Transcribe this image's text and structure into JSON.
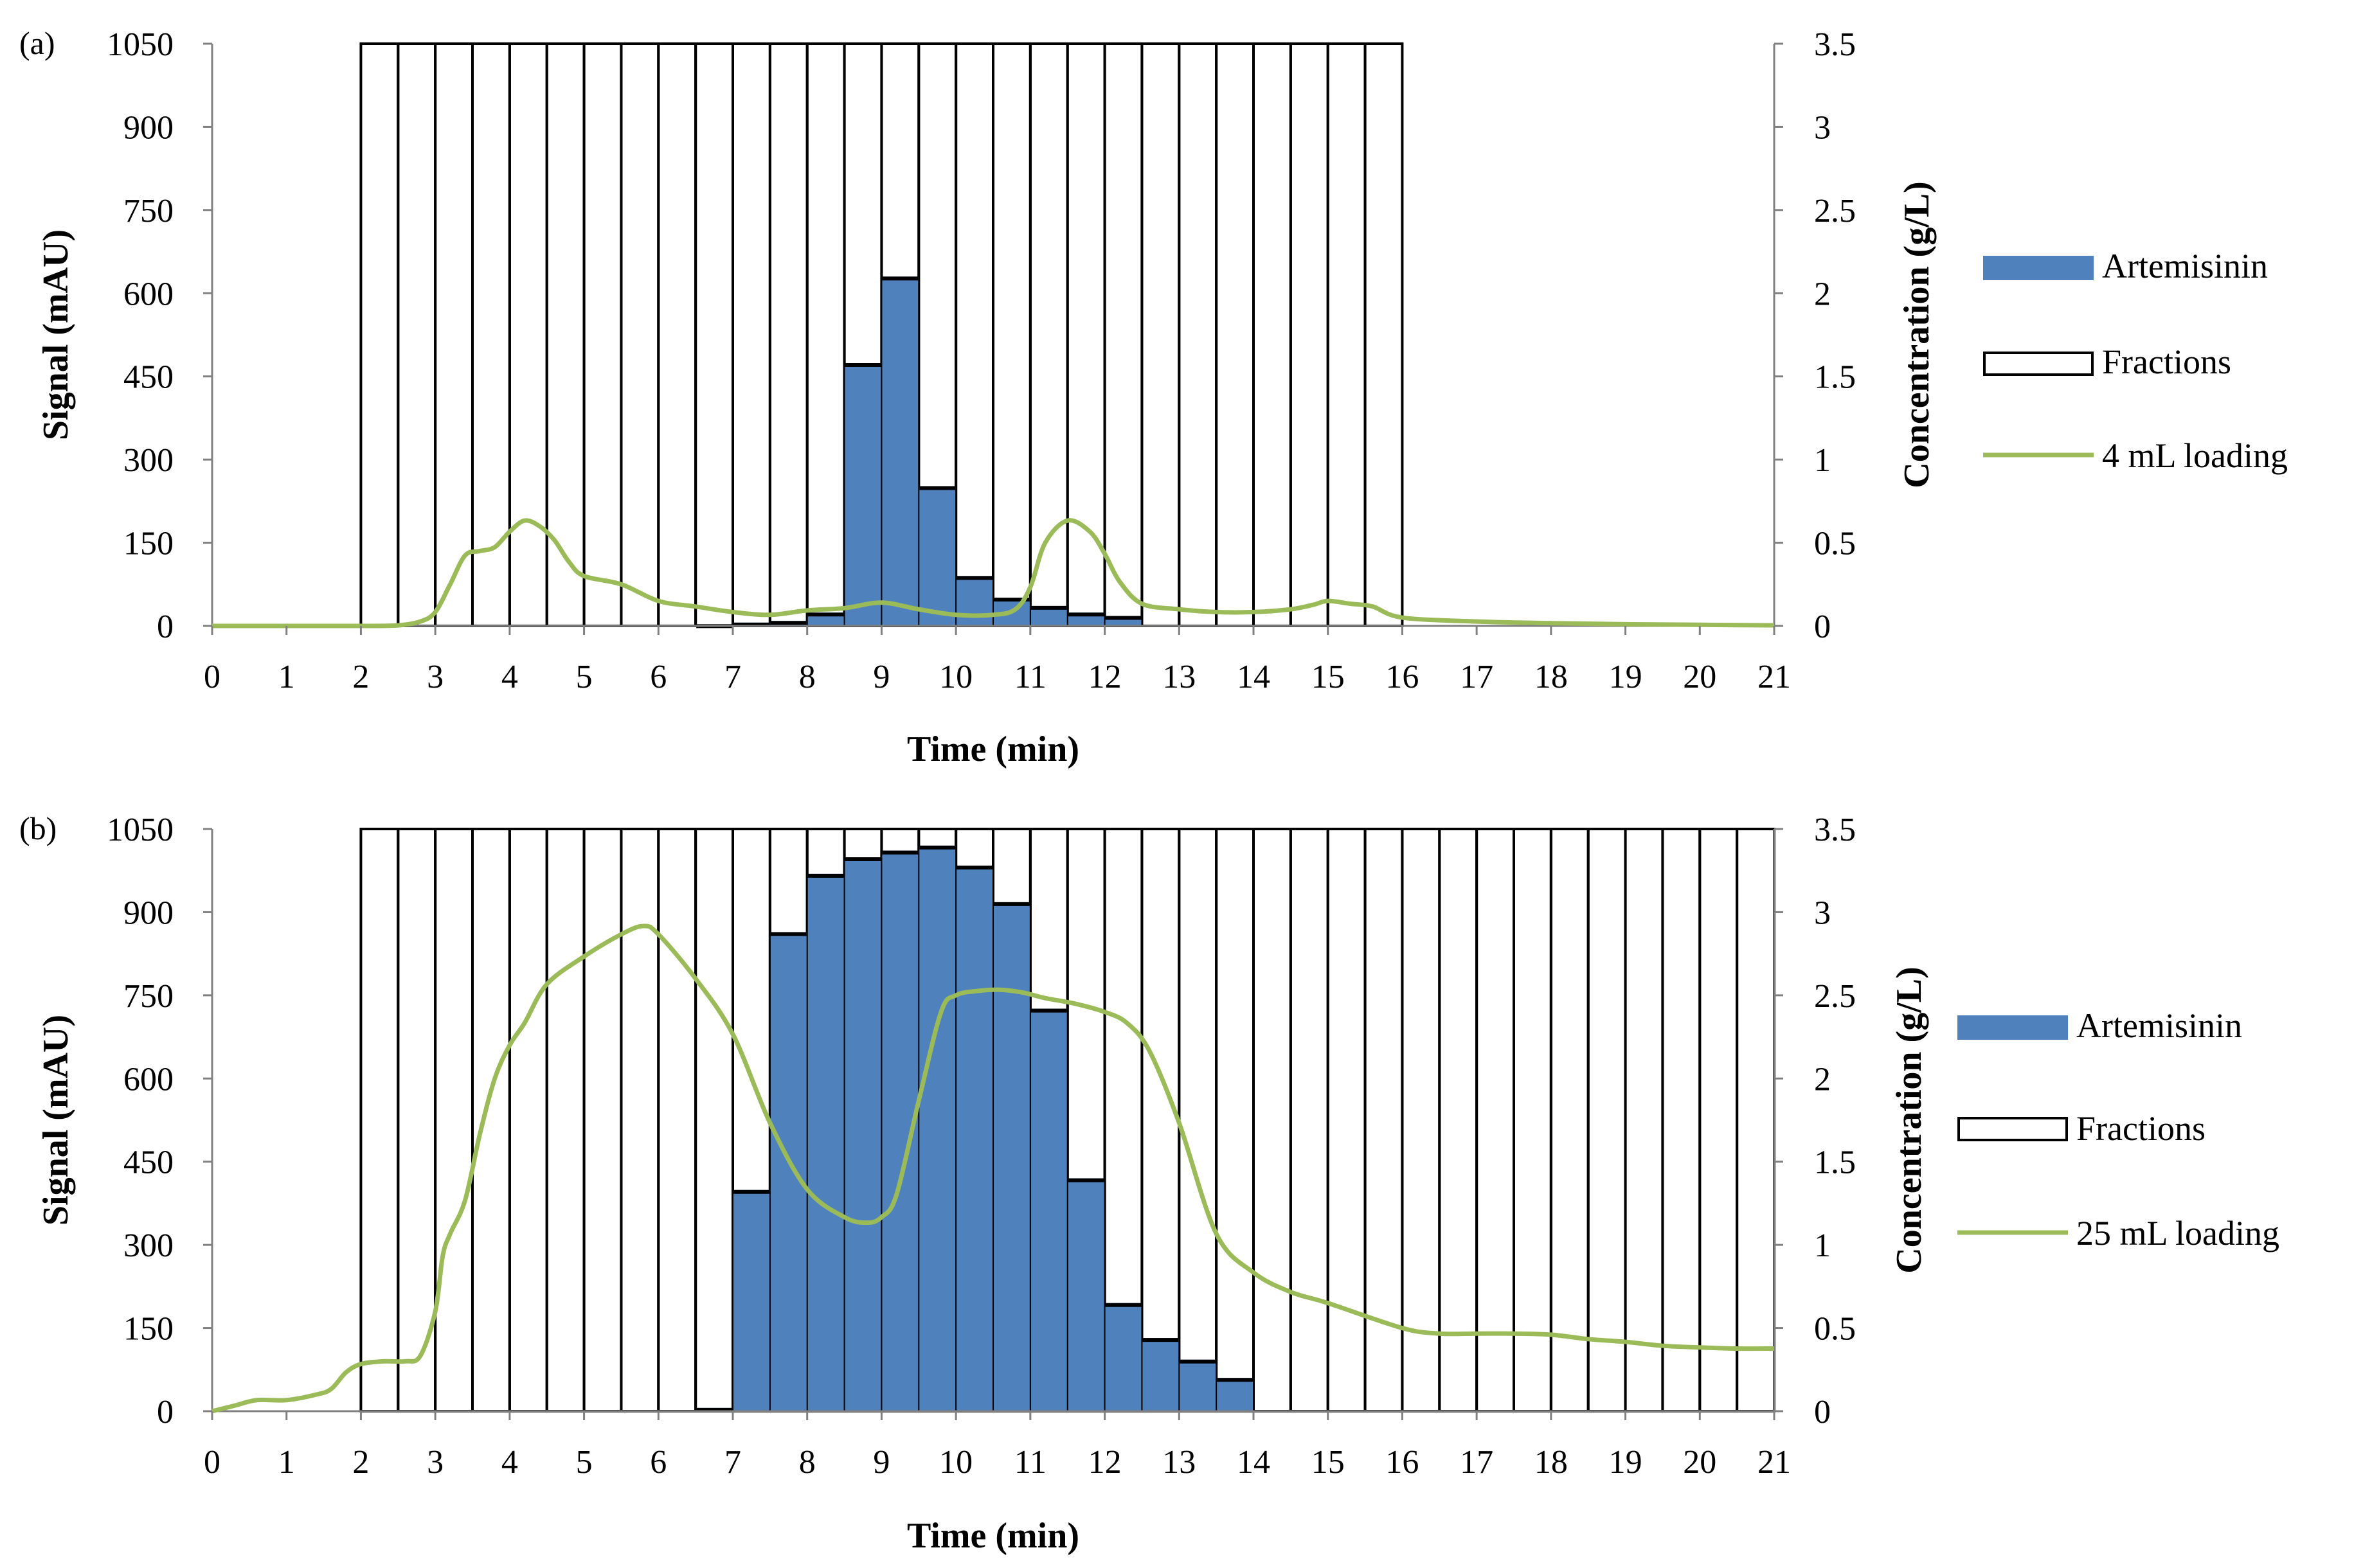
{
  "colors": {
    "bar": "#4F81BD",
    "line": "#9BBB59",
    "fraction_stroke": "#000000",
    "axis": "#808080",
    "background": "#ffffff"
  },
  "chart_data": [
    {
      "type": "bar",
      "panel_label": "(a)",
      "title": "",
      "xlabel": "Time (min)",
      "ylabel": "Signal (mAU)",
      "y2label": "Concentration (g/L)",
      "xlim": [
        0,
        21
      ],
      "ylim": [
        0,
        1050
      ],
      "y2lim": [
        0,
        3.5
      ],
      "x_ticks": [
        "0",
        "1",
        "2",
        "3",
        "4",
        "5",
        "6",
        "7",
        "8",
        "9",
        "10",
        "11",
        "12",
        "13",
        "14",
        "15",
        "16",
        "17",
        "18",
        "19",
        "20",
        "21"
      ],
      "y_ticks": [
        "0",
        "150",
        "300",
        "450",
        "600",
        "750",
        "900",
        "1050"
      ],
      "y2_ticks": [
        "0",
        "0.5",
        "1",
        "1.5",
        "2",
        "2.5",
        "3",
        "3.5"
      ],
      "grid": false,
      "legend_position": "right",
      "legend": [
        {
          "label": "Artemisinin",
          "kind": "bar"
        },
        {
          "label": "Fractions",
          "kind": "fraction"
        },
        {
          "label": "4 mL loading",
          "kind": "line"
        }
      ],
      "fractions": {
        "start": [
          2.0,
          2.5,
          3.0,
          3.5,
          4.0,
          4.5,
          5.0,
          5.5,
          6.0,
          6.5,
          7.0,
          7.5,
          8.0,
          8.5,
          9.0,
          9.5,
          10.0,
          10.5,
          11.0,
          11.5,
          12.0,
          12.5,
          13.0,
          13.5,
          14.0,
          14.5,
          15.0,
          15.5
        ],
        "width": 0.5,
        "top": 3.5
      },
      "artemisinin": {
        "x_start": [
          6.5,
          7.0,
          7.5,
          8.0,
          8.5,
          9.0,
          9.5,
          10.0,
          10.5,
          11.0,
          11.5,
          12.0
        ],
        "width": 0.5,
        "concentration_g_per_L": [
          0.01,
          0.02,
          0.03,
          0.08,
          1.58,
          2.1,
          0.84,
          0.3,
          0.17,
          0.12,
          0.08,
          0.06
        ]
      },
      "series": [
        {
          "name": "4 mL loading",
          "x": [
            0,
            1,
            2,
            2.5,
            2.8,
            3.0,
            3.2,
            3.4,
            3.6,
            3.8,
            4.0,
            4.2,
            4.4,
            4.6,
            4.8,
            5.0,
            5.5,
            6.0,
            6.5,
            7.0,
            7.5,
            8.0,
            8.5,
            9.0,
            9.5,
            10.0,
            10.5,
            10.8,
            11.0,
            11.2,
            11.5,
            11.8,
            12.0,
            12.2,
            12.5,
            13.0,
            13.5,
            14.0,
            14.5,
            14.8,
            15.0,
            15.3,
            15.6,
            16.0,
            17.0,
            18.0,
            19.0,
            20.0,
            21.0
          ],
          "y": [
            0,
            0,
            0,
            1,
            8,
            25,
            75,
            127,
            135,
            142,
            170,
            190,
            180,
            155,
            115,
            90,
            75,
            45,
            35,
            25,
            20,
            28,
            32,
            42,
            30,
            20,
            20,
            30,
            70,
            150,
            190,
            170,
            130,
            80,
            40,
            30,
            25,
            25,
            30,
            38,
            45,
            40,
            35,
            15,
            8,
            5,
            3,
            2,
            1
          ]
        }
      ]
    },
    {
      "type": "bar",
      "panel_label": "(b)",
      "title": "",
      "xlabel": "Time (min)",
      "ylabel": "Signal (mAU)",
      "y2label": "Concentration (g/L)",
      "xlim": [
        0,
        21
      ],
      "ylim": [
        0,
        1050
      ],
      "y2lim": [
        0,
        3.5
      ],
      "x_ticks": [
        "0",
        "1",
        "2",
        "3",
        "4",
        "5",
        "6",
        "7",
        "8",
        "9",
        "10",
        "11",
        "12",
        "13",
        "14",
        "15",
        "16",
        "17",
        "18",
        "19",
        "20",
        "21"
      ],
      "y_ticks": [
        "0",
        "150",
        "300",
        "450",
        "600",
        "750",
        "900",
        "1050"
      ],
      "y2_ticks": [
        "0",
        "0.5",
        "1",
        "1.5",
        "2",
        "2.5",
        "3",
        "3.5"
      ],
      "grid": false,
      "legend_position": "right",
      "legend": [
        {
          "label": "Artemisinin",
          "kind": "bar"
        },
        {
          "label": "Fractions",
          "kind": "fraction"
        },
        {
          "label": "25 mL loading",
          "kind": "line"
        }
      ],
      "fractions": {
        "start": [
          2.0,
          2.5,
          3.0,
          3.5,
          4.0,
          4.5,
          5.0,
          5.5,
          6.0,
          6.5,
          7.0,
          7.5,
          8.0,
          8.5,
          9.0,
          9.5,
          10.0,
          10.5,
          11.0,
          11.5,
          12.0,
          12.5,
          13.0,
          13.5,
          14.0,
          14.5,
          15.0,
          15.5,
          16.0,
          16.5,
          17.0,
          17.5,
          18.0,
          18.5,
          19.0,
          19.5,
          20.0,
          20.5
        ],
        "width": 0.5,
        "top": 3.5
      },
      "artemisinin": {
        "x_start": [
          6.5,
          7.0,
          7.5,
          8.0,
          8.5,
          9.0,
          9.5,
          10.0,
          10.5,
          11.0,
          11.5,
          12.0,
          12.5,
          13.0,
          13.5
        ],
        "width": 0.5,
        "concentration_g_per_L": [
          0.02,
          1.33,
          2.88,
          3.23,
          3.33,
          3.37,
          3.4,
          3.28,
          3.06,
          2.42,
          1.4,
          0.65,
          0.44,
          0.31,
          0.2
        ]
      },
      "series": [
        {
          "name": "25 mL loading",
          "x": [
            0,
            0.3,
            0.6,
            1.0,
            1.4,
            1.6,
            1.8,
            2.0,
            2.3,
            2.6,
            2.8,
            3.0,
            3.1,
            3.2,
            3.4,
            3.6,
            3.8,
            4.0,
            4.2,
            4.5,
            5.0,
            5.5,
            5.8,
            6.0,
            6.5,
            7.0,
            7.5,
            8.0,
            8.5,
            8.8,
            9.0,
            9.2,
            9.5,
            9.8,
            10.0,
            10.3,
            10.6,
            10.9,
            11.2,
            11.6,
            12.0,
            12.3,
            12.6,
            13.0,
            13.5,
            14.0,
            14.5,
            15.0,
            16.0,
            16.5,
            17.0,
            17.5,
            18.0,
            18.5,
            19.0,
            19.5,
            20.0,
            20.5,
            21.0
          ],
          "y": [
            0,
            10,
            20,
            20,
            30,
            40,
            70,
            85,
            90,
            90,
            100,
            180,
            280,
            320,
            380,
            500,
            600,
            660,
            700,
            770,
            820,
            860,
            875,
            860,
            780,
            680,
            520,
            400,
            350,
            340,
            350,
            390,
            560,
            720,
            750,
            758,
            760,
            755,
            745,
            735,
            720,
            700,
            650,
            520,
            320,
            250,
            215,
            195,
            150,
            140,
            140,
            140,
            138,
            130,
            125,
            118,
            115,
            113,
            113
          ]
        }
      ]
    }
  ]
}
